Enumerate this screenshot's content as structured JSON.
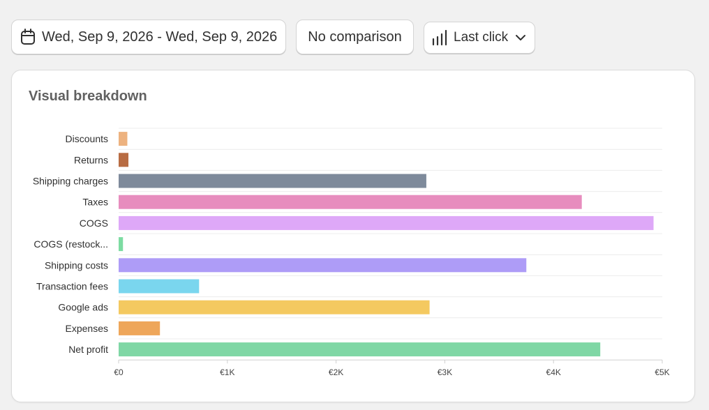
{
  "toolbar": {
    "date_range": "Wed, Sep 9, 2026 - Wed, Sep 9, 2026",
    "comparison": "No comparison",
    "attribution": "Last click"
  },
  "card": {
    "title": "Visual breakdown"
  },
  "chart_data": {
    "type": "bar",
    "orientation": "horizontal",
    "categories": [
      "Discounts",
      "Returns",
      "Shipping charges",
      "Taxes",
      "COGS",
      "COGS (restock...",
      "Shipping costs",
      "Transaction fees",
      "Google ads",
      "Expenses",
      "Net profit"
    ],
    "values": [
      80,
      90,
      2830,
      4260,
      4920,
      40,
      3750,
      740,
      2860,
      380,
      4430
    ],
    "colors": [
      "#edb27f",
      "#b86c43",
      "#7e8a9b",
      "#e78dbe",
      "#dea8f8",
      "#7ddca2",
      "#ae9cf7",
      "#7ad6ee",
      "#f4c960",
      "#eea65a",
      "#7fd7a5"
    ],
    "xlim": [
      0,
      5000
    ],
    "xticks": [
      0,
      1000,
      2000,
      3000,
      4000,
      5000
    ],
    "xtick_labels": [
      "€0",
      "€1K",
      "€2K",
      "€3K",
      "€4K",
      "€5K"
    ],
    "grid": true,
    "legend": "none"
  }
}
